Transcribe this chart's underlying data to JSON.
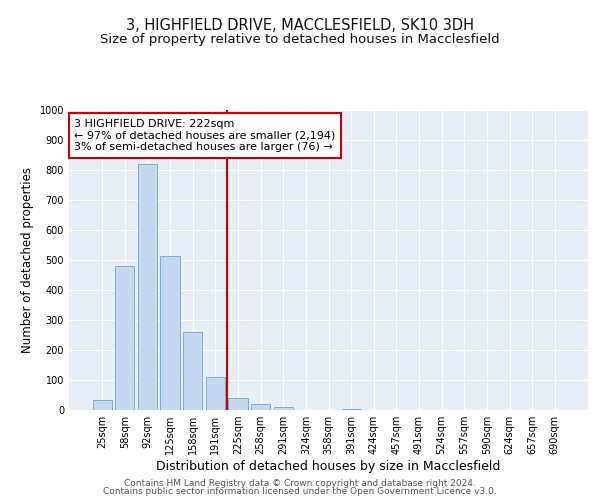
{
  "title_line1": "3, HIGHFIELD DRIVE, MACCLESFIELD, SK10 3DH",
  "title_line2": "Size of property relative to detached houses in Macclesfield",
  "xlabel": "Distribution of detached houses by size in Macclesfield",
  "ylabel": "Number of detached properties",
  "categories": [
    "25sqm",
    "58sqm",
    "92sqm",
    "125sqm",
    "158sqm",
    "191sqm",
    "225sqm",
    "258sqm",
    "291sqm",
    "324sqm",
    "358sqm",
    "391sqm",
    "424sqm",
    "457sqm",
    "491sqm",
    "524sqm",
    "557sqm",
    "590sqm",
    "624sqm",
    "657sqm",
    "690sqm"
  ],
  "values": [
    35,
    480,
    820,
    515,
    260,
    110,
    40,
    20,
    10,
    0,
    0,
    5,
    0,
    0,
    0,
    0,
    0,
    0,
    0,
    0,
    0
  ],
  "bar_color": "#c5d8ef",
  "bar_edgecolor": "#7aaed0",
  "reference_line_color": "#cc0000",
  "annotation_line1": "3 HIGHFIELD DRIVE: 222sqm",
  "annotation_line2": "← 97% of detached houses are smaller (2,194)",
  "annotation_line3": "3% of semi-detached houses are larger (76) →",
  "annotation_box_edgecolor": "#cc0000",
  "annotation_box_facecolor": "#ffffff",
  "ylim": [
    0,
    1000
  ],
  "yticks": [
    0,
    100,
    200,
    300,
    400,
    500,
    600,
    700,
    800,
    900,
    1000
  ],
  "background_color": "#e8eef5",
  "footer_line1": "Contains HM Land Registry data © Crown copyright and database right 2024.",
  "footer_line2": "Contains public sector information licensed under the Open Government Licence v3.0.",
  "title_fontsize": 10.5,
  "subtitle_fontsize": 9.5,
  "xlabel_fontsize": 9,
  "ylabel_fontsize": 8.5,
  "tick_fontsize": 7,
  "annotation_fontsize": 8,
  "footer_fontsize": 6.5
}
